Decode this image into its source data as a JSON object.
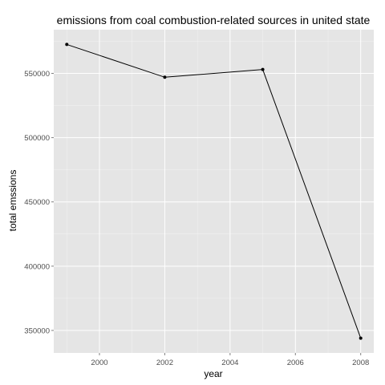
{
  "chart_data": {
    "type": "line",
    "title": "emissions from coal combustion-related sources in united state",
    "xlabel": "year",
    "ylabel": "total emssions",
    "x": [
      1999,
      2002,
      2005,
      2008
    ],
    "series": [
      {
        "values": [
          572500,
          547000,
          553000,
          344000
        ]
      }
    ],
    "xlim": [
      1998.6,
      2008.4
    ],
    "ylim": [
      332500,
      584000
    ],
    "xticks": [
      2000,
      2002,
      2004,
      2006,
      2008
    ],
    "xtick_labels": [
      "2000",
      "2002",
      "2004",
      "2006",
      "2008"
    ],
    "yticks": [
      350000,
      400000,
      450000,
      500000,
      550000
    ],
    "ytick_labels": [
      "350000",
      "400000",
      "450000",
      "500000",
      "550000"
    ],
    "grid": true,
    "colors": {
      "panel": "#e5e5e5",
      "grid": "#ffffff",
      "line": "#000000"
    }
  }
}
